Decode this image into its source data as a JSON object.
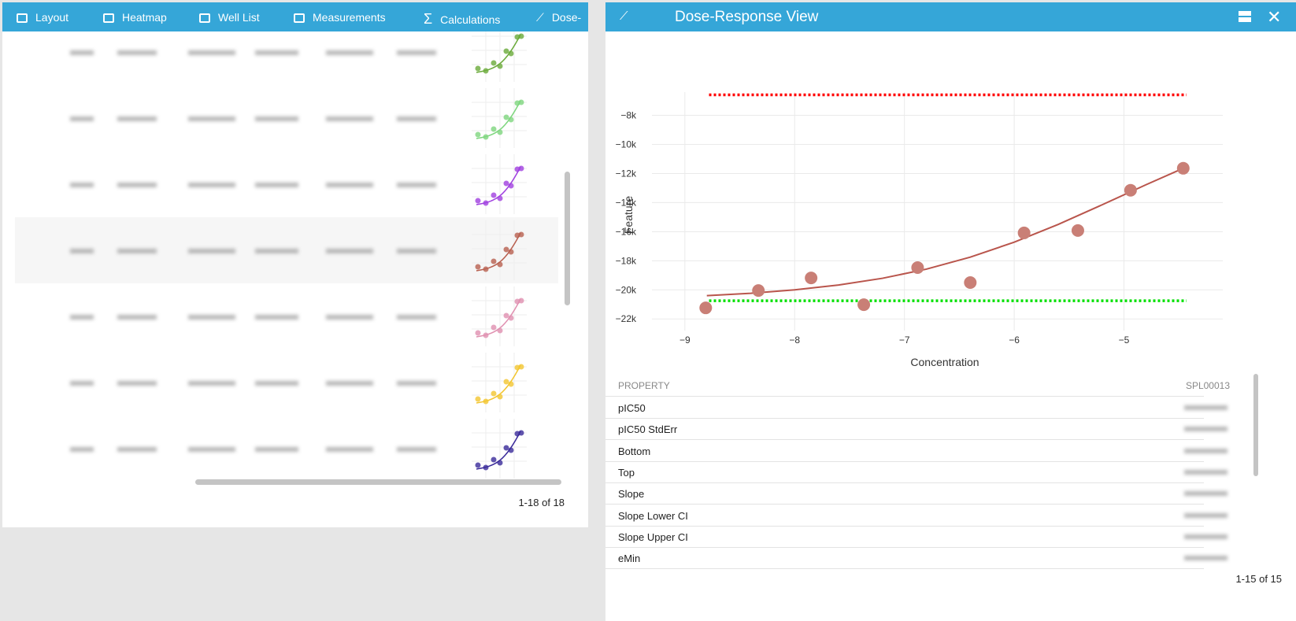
{
  "left_panel": {
    "tabs": [
      "Layout",
      "Heatmap",
      "Well List",
      "Measurements",
      "Calculations",
      "Dose-"
    ],
    "pagination": "1-18 of 18"
  },
  "right_panel": {
    "title": "Dose-Response View",
    "pagination": "1-15 of 15"
  },
  "chart_data": {
    "type": "scatter",
    "x_label": "Concentration",
    "y_label": "Feature",
    "xlim": [
      -9.3,
      -4.1
    ],
    "ylim": [
      -22800,
      -6400
    ],
    "xticks": [
      {
        "value": -9,
        "label": "−9"
      },
      {
        "value": -8,
        "label": "−8"
      },
      {
        "value": -7,
        "label": "−7"
      },
      {
        "value": -6,
        "label": "−6"
      },
      {
        "value": -5,
        "label": "−5"
      }
    ],
    "yticks": [
      {
        "value": -8000,
        "label": "−8k"
      },
      {
        "value": -10000,
        "label": "−10k"
      },
      {
        "value": -12000,
        "label": "−12k"
      },
      {
        "value": -14000,
        "label": "−14k"
      },
      {
        "value": -16000,
        "label": "−16k"
      },
      {
        "value": -18000,
        "label": "−18k"
      },
      {
        "value": -20000,
        "label": "−20k"
      },
      {
        "value": -22000,
        "label": "−22k"
      }
    ],
    "grid": true,
    "series": [
      {
        "mode": "markers",
        "color": "#c97f76",
        "x": [
          -8.81,
          -8.33,
          -7.85,
          -7.37,
          -6.88,
          -6.4,
          -5.91,
          -5.42,
          -4.94,
          -4.46
        ],
        "values": [
          -21240,
          -20045,
          -19180,
          -21020,
          -18470,
          -19500,
          -16085,
          -15920,
          -13150,
          -11640
        ]
      },
      {
        "mode": "line",
        "color": "#b9554c",
        "x": [
          -8.8,
          -8.4,
          -8.0,
          -7.6,
          -7.2,
          -6.8,
          -6.4,
          -6.0,
          -5.6,
          -5.2,
          -4.8,
          -4.46
        ],
        "values": [
          -20397,
          -20235,
          -20001,
          -19667,
          -19204,
          -18575,
          -17751,
          -16720,
          -15502,
          -14154,
          -12772,
          -11640
        ]
      }
    ],
    "reference_lines": [
      {
        "value": -6590,
        "x": [
          -8.78,
          -4.43
        ],
        "color": "#ff0000"
      },
      {
        "value": -20750,
        "x": [
          -8.78,
          -4.43
        ],
        "color": "#00e000"
      }
    ]
  },
  "property_table": {
    "header": [
      "PROPERTY",
      "SPL00013"
    ],
    "rows": [
      "pIC50",
      "pIC50 StdErr",
      "Bottom",
      "Top",
      "Slope",
      "Slope Lower CI",
      "Slope Upper CI",
      "eMin"
    ]
  }
}
